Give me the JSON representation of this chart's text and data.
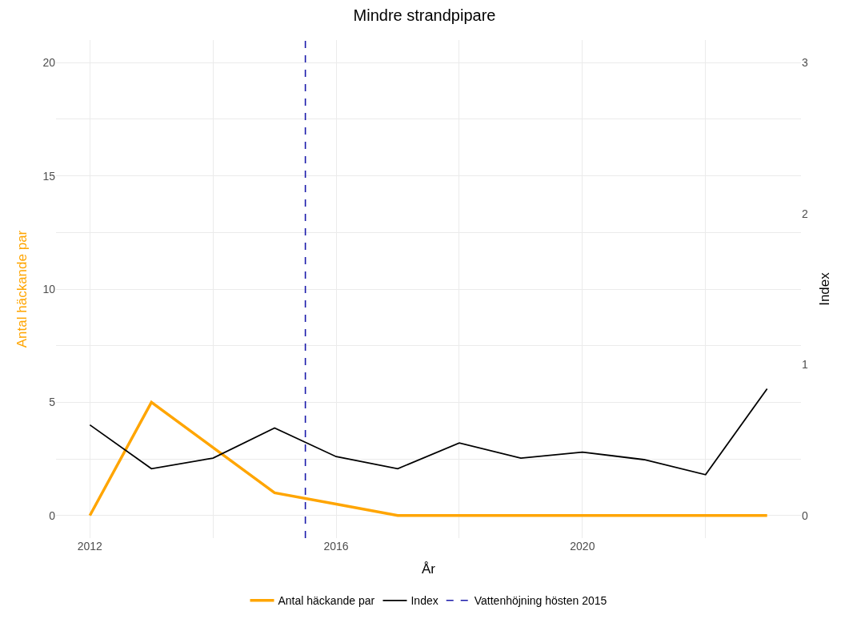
{
  "chart_data": {
    "type": "line",
    "title": "Mindre strandpipare",
    "xlabel": "År",
    "ylabel": "Antal häckande par",
    "y2label": "Index",
    "x": [
      2012,
      2013,
      2014,
      2015,
      2016,
      2017,
      2018,
      2019,
      2020,
      2021,
      2022,
      2023
    ],
    "series": [
      {
        "name": "Antal häckande par",
        "color": "#ffa500",
        "values": [
          0,
          5,
          3,
          1,
          0.5,
          0,
          0,
          0,
          0,
          0,
          0,
          0
        ]
      },
      {
        "name": "Index",
        "color": "#000000",
        "axis": "y2",
        "values": [
          0.6,
          0.31,
          0.38,
          0.58,
          0.39,
          0.31,
          0.48,
          0.38,
          0.42,
          0.37,
          0.27,
          0.84
        ]
      }
    ],
    "ref_lines": [
      {
        "axis": "x",
        "value": 2015.5,
        "label": "Vattenhöjning hösten 2015",
        "color": "#1a1aaa",
        "line_style": "dashed"
      }
    ],
    "xlim": [
      2011.45,
      2023.55
    ],
    "xticks": [
      2012,
      {
        "value": 2014,
        "label": null
      },
      2016,
      {
        "value": 2018,
        "label": null
      },
      2020,
      {
        "value": 2022,
        "label": null
      }
    ],
    "ylim": [
      -1,
      21
    ],
    "yticks": [
      0,
      {
        "value": 2.5,
        "label": null
      },
      5,
      {
        "value": 7.5,
        "label": null
      },
      10,
      {
        "value": 12.5,
        "label": null
      },
      15,
      {
        "value": 17.5,
        "label": null
      },
      20
    ],
    "y2lim": [
      -0.15,
      3.15
    ],
    "y2ticks": [
      0,
      1,
      2,
      3
    ],
    "grid": true,
    "legend": "bottom",
    "line_style": "solid",
    "marker": "none"
  }
}
